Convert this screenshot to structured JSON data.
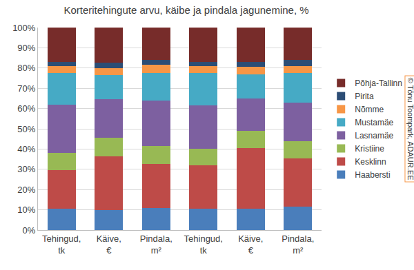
{
  "chart_data": {
    "type": "bar",
    "title": "Korteritehingute arvu, käibe ja pindala jagunemine, %",
    "categories": [
      "Tehingud, tk",
      "Käive, €",
      "Pindala, m²",
      "Tehingud, tk",
      "Käive, €",
      "Pindala, m²"
    ],
    "series": [
      {
        "name": "Haabersti",
        "color": "#4a7ebb",
        "values": [
          10.5,
          10,
          11,
          10.5,
          10.5,
          11.5
        ]
      },
      {
        "name": "Kesklinn",
        "color": "#be4b48",
        "values": [
          19,
          26.5,
          21.5,
          21.5,
          30,
          24
        ]
      },
      {
        "name": "Kristiine",
        "color": "#98b954",
        "values": [
          8.5,
          9,
          9,
          8,
          8.5,
          8.5
        ]
      },
      {
        "name": "Lasnamäe",
        "color": "#7d60a0",
        "values": [
          24,
          19,
          22.5,
          21.5,
          16,
          19
        ]
      },
      {
        "name": "Mustamäe",
        "color": "#46aac5",
        "values": [
          15.5,
          12,
          13.5,
          16,
          12,
          14.5
        ]
      },
      {
        "name": "Nõmme",
        "color": "#f79646",
        "values": [
          3.5,
          3.5,
          4,
          3.5,
          3.5,
          3.5
        ]
      },
      {
        "name": "Pirita",
        "color": "#2c4d75",
        "values": [
          2,
          2.5,
          2.5,
          2,
          2.5,
          3
        ]
      },
      {
        "name": "Põhja-Tallinn",
        "color": "#772c2a",
        "values": [
          17,
          17.5,
          16,
          17,
          17,
          16
        ]
      }
    ],
    "ylim": [
      0,
      100
    ],
    "yticks": [
      {
        "value": 0,
        "label": "0%"
      },
      {
        "value": 10,
        "label": "10%"
      },
      {
        "value": 20,
        "label": "20%"
      },
      {
        "value": 30,
        "label": "30%"
      },
      {
        "value": 40,
        "label": "40%"
      },
      {
        "value": 50,
        "label": "50%"
      },
      {
        "value": 60,
        "label": "60%"
      },
      {
        "value": 70,
        "label": "70%"
      },
      {
        "value": 80,
        "label": "80%"
      },
      {
        "value": 90,
        "label": "90%"
      },
      {
        "value": 100,
        "label": "100%"
      }
    ],
    "stacked": true,
    "grid": true,
    "legend": "right",
    "annotations": [
      {
        "text": "© Tõnu Toompark, ADAUR.EE"
      }
    ]
  }
}
